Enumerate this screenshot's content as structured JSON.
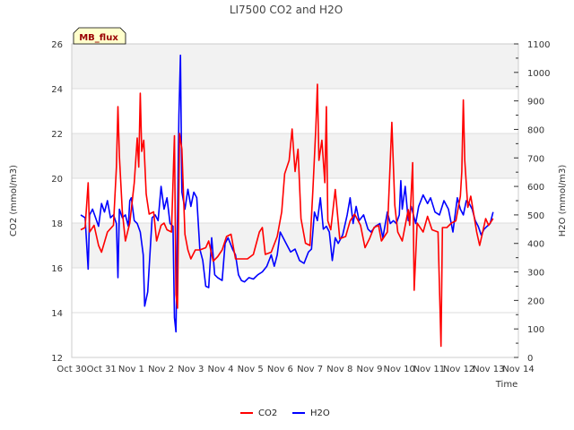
{
  "chart_data": {
    "type": "line",
    "title": "LI7500 CO2 and H2O",
    "badge": "MB_flux",
    "xlabel": "Time",
    "ylabel_left": "CO2 (mmol/m3)",
    "ylabel_right": "H2O (mmol/m3)",
    "x_range": [
      0,
      15
    ],
    "x_ticks": [
      {
        "x": 0,
        "label": "Oct 30"
      },
      {
        "x": 1,
        "label": "Oct 31"
      },
      {
        "x": 2,
        "label": "Nov 1"
      },
      {
        "x": 3,
        "label": "Nov 2"
      },
      {
        "x": 4,
        "label": "Nov 3"
      },
      {
        "x": 5,
        "label": "Nov 4"
      },
      {
        "x": 6,
        "label": "Nov 5"
      },
      {
        "x": 7,
        "label": "Nov 6"
      },
      {
        "x": 8,
        "label": "Nov 7"
      },
      {
        "x": 9,
        "label": "Nov 8"
      },
      {
        "x": 10,
        "label": "Nov 9"
      },
      {
        "x": 11,
        "label": "Nov 10"
      },
      {
        "x": 12,
        "label": "Nov 11"
      },
      {
        "x": 13,
        "label": "Nov 12"
      },
      {
        "x": 14,
        "label": "Nov 13"
      },
      {
        "x": 15,
        "label": "Nov 14"
      }
    ],
    "ylim_left": [
      12,
      26
    ],
    "yticks_left": [
      "12",
      "14",
      "16",
      "18",
      "20",
      "22",
      "24",
      "26"
    ],
    "ylim_right": [
      0,
      1100
    ],
    "yticks_right": [
      "0",
      "100",
      "200",
      "300",
      "400",
      "500",
      "600",
      "700",
      "800",
      "900",
      "1000",
      "1100"
    ],
    "bands_left": [
      [
        16,
        18
      ],
      [
        20,
        22
      ],
      [
        24,
        26
      ]
    ],
    "colors": {
      "co2": "#ff0000",
      "h2o": "#0000ff",
      "band": "#f2f2f2",
      "badge_bg": "#ffffcc",
      "badge_text": "#990000"
    },
    "legend": [
      {
        "name": "CO2",
        "color": "#ff0000"
      },
      {
        "name": "H2O",
        "color": "#0000ff"
      }
    ],
    "series": [
      {
        "name": "CO2",
        "axis": "left",
        "points": [
          [
            0.3,
            17.7
          ],
          [
            0.45,
            17.8
          ],
          [
            0.55,
            19.8
          ],
          [
            0.6,
            17.6
          ],
          [
            0.75,
            17.9
          ],
          [
            0.9,
            17.0
          ],
          [
            1.0,
            16.7
          ],
          [
            1.2,
            17.6
          ],
          [
            1.4,
            17.9
          ],
          [
            1.5,
            20.5
          ],
          [
            1.55,
            23.2
          ],
          [
            1.6,
            21.0
          ],
          [
            1.7,
            18.5
          ],
          [
            1.8,
            17.2
          ],
          [
            1.95,
            18.0
          ],
          [
            2.1,
            19.8
          ],
          [
            2.2,
            21.8
          ],
          [
            2.25,
            20.5
          ],
          [
            2.3,
            23.8
          ],
          [
            2.35,
            21.2
          ],
          [
            2.42,
            21.7
          ],
          [
            2.5,
            19.3
          ],
          [
            2.6,
            18.4
          ],
          [
            2.75,
            18.5
          ],
          [
            2.85,
            17.2
          ],
          [
            3.0,
            17.9
          ],
          [
            3.1,
            18.0
          ],
          [
            3.2,
            17.7
          ],
          [
            3.35,
            17.6
          ],
          [
            3.45,
            21.9
          ],
          [
            3.5,
            14.8
          ],
          [
            3.55,
            14.2
          ],
          [
            3.62,
            22.0
          ],
          [
            3.7,
            21.3
          ],
          [
            3.8,
            17.5
          ],
          [
            3.9,
            16.8
          ],
          [
            4.0,
            16.4
          ],
          [
            4.15,
            16.8
          ],
          [
            4.3,
            16.8
          ],
          [
            4.5,
            16.9
          ],
          [
            4.6,
            17.2
          ],
          [
            4.75,
            16.3
          ],
          [
            4.9,
            16.5
          ],
          [
            5.05,
            16.8
          ],
          [
            5.2,
            17.4
          ],
          [
            5.35,
            17.5
          ],
          [
            5.5,
            16.4
          ],
          [
            5.7,
            16.4
          ],
          [
            5.9,
            16.4
          ],
          [
            6.1,
            16.6
          ],
          [
            6.3,
            17.6
          ],
          [
            6.4,
            17.8
          ],
          [
            6.5,
            16.6
          ],
          [
            6.7,
            16.7
          ],
          [
            6.9,
            17.4
          ],
          [
            7.05,
            18.5
          ],
          [
            7.15,
            20.2
          ],
          [
            7.3,
            20.8
          ],
          [
            7.4,
            22.2
          ],
          [
            7.5,
            20.3
          ],
          [
            7.6,
            21.3
          ],
          [
            7.7,
            18.2
          ],
          [
            7.85,
            17.1
          ],
          [
            8.0,
            17.0
          ],
          [
            8.1,
            19.5
          ],
          [
            8.2,
            22.3
          ],
          [
            8.25,
            24.2
          ],
          [
            8.3,
            20.8
          ],
          [
            8.4,
            21.7
          ],
          [
            8.5,
            19.8
          ],
          [
            8.55,
            23.2
          ],
          [
            8.6,
            18.1
          ],
          [
            8.7,
            17.7
          ],
          [
            8.85,
            19.5
          ],
          [
            9.0,
            17.3
          ],
          [
            9.2,
            17.4
          ],
          [
            9.35,
            18.1
          ],
          [
            9.5,
            18.4
          ],
          [
            9.7,
            17.9
          ],
          [
            9.85,
            16.9
          ],
          [
            10.0,
            17.3
          ],
          [
            10.15,
            17.8
          ],
          [
            10.3,
            17.9
          ],
          [
            10.4,
            17.2
          ],
          [
            10.6,
            17.6
          ],
          [
            10.75,
            22.5
          ],
          [
            10.85,
            18.8
          ],
          [
            10.95,
            17.6
          ],
          [
            11.1,
            17.2
          ],
          [
            11.3,
            18.6
          ],
          [
            11.35,
            17.9
          ],
          [
            11.45,
            20.7
          ],
          [
            11.5,
            15.0
          ],
          [
            11.6,
            18.0
          ],
          [
            11.8,
            17.6
          ],
          [
            11.95,
            18.3
          ],
          [
            12.1,
            17.7
          ],
          [
            12.3,
            17.6
          ],
          [
            12.4,
            12.5
          ],
          [
            12.45,
            17.8
          ],
          [
            12.6,
            17.8
          ],
          [
            12.75,
            18.0
          ],
          [
            12.9,
            18.1
          ],
          [
            13.05,
            19.2
          ],
          [
            13.1,
            20.3
          ],
          [
            13.15,
            23.5
          ],
          [
            13.2,
            20.8
          ],
          [
            13.3,
            18.7
          ],
          [
            13.4,
            19.2
          ],
          [
            13.5,
            18.4
          ],
          [
            13.6,
            17.6
          ],
          [
            13.7,
            17.0
          ],
          [
            13.8,
            17.6
          ],
          [
            13.9,
            18.2
          ],
          [
            14.0,
            17.9
          ],
          [
            14.15,
            18.2
          ]
        ]
      },
      {
        "name": "H2O",
        "axis": "right",
        "points": [
          [
            0.3,
            500
          ],
          [
            0.45,
            490
          ],
          [
            0.55,
            310
          ],
          [
            0.6,
            500
          ],
          [
            0.7,
            520
          ],
          [
            0.8,
            490
          ],
          [
            0.9,
            460
          ],
          [
            1.0,
            540
          ],
          [
            1.1,
            510
          ],
          [
            1.2,
            550
          ],
          [
            1.3,
            490
          ],
          [
            1.4,
            500
          ],
          [
            1.5,
            470
          ],
          [
            1.55,
            280
          ],
          [
            1.6,
            520
          ],
          [
            1.7,
            490
          ],
          [
            1.8,
            500
          ],
          [
            1.9,
            460
          ],
          [
            1.95,
            550
          ],
          [
            2.0,
            560
          ],
          [
            2.1,
            480
          ],
          [
            2.2,
            470
          ],
          [
            2.3,
            440
          ],
          [
            2.4,
            360
          ],
          [
            2.45,
            180
          ],
          [
            2.55,
            230
          ],
          [
            2.7,
            490
          ],
          [
            2.8,
            500
          ],
          [
            2.9,
            480
          ],
          [
            3.0,
            600
          ],
          [
            3.1,
            520
          ],
          [
            3.2,
            560
          ],
          [
            3.3,
            470
          ],
          [
            3.4,
            460
          ],
          [
            3.45,
            140
          ],
          [
            3.5,
            90
          ],
          [
            3.6,
            850
          ],
          [
            3.65,
            1060
          ],
          [
            3.7,
            580
          ],
          [
            3.8,
            520
          ],
          [
            3.9,
            590
          ],
          [
            4.0,
            530
          ],
          [
            4.1,
            580
          ],
          [
            4.2,
            560
          ],
          [
            4.3,
            380
          ],
          [
            4.4,
            340
          ],
          [
            4.5,
            250
          ],
          [
            4.6,
            245
          ],
          [
            4.7,
            420
          ],
          [
            4.8,
            290
          ],
          [
            4.9,
            280
          ],
          [
            5.05,
            270
          ],
          [
            5.15,
            400
          ],
          [
            5.25,
            420
          ],
          [
            5.4,
            380
          ],
          [
            5.5,
            360
          ],
          [
            5.6,
            290
          ],
          [
            5.7,
            270
          ],
          [
            5.8,
            265
          ],
          [
            5.95,
            280
          ],
          [
            6.1,
            275
          ],
          [
            6.25,
            290
          ],
          [
            6.4,
            300
          ],
          [
            6.55,
            320
          ],
          [
            6.7,
            360
          ],
          [
            6.8,
            320
          ],
          [
            6.9,
            360
          ],
          [
            7.0,
            440
          ],
          [
            7.1,
            420
          ],
          [
            7.2,
            400
          ],
          [
            7.35,
            370
          ],
          [
            7.5,
            380
          ],
          [
            7.65,
            340
          ],
          [
            7.8,
            330
          ],
          [
            7.95,
            370
          ],
          [
            8.05,
            380
          ],
          [
            8.15,
            510
          ],
          [
            8.25,
            480
          ],
          [
            8.35,
            560
          ],
          [
            8.45,
            450
          ],
          [
            8.55,
            460
          ],
          [
            8.65,
            440
          ],
          [
            8.75,
            340
          ],
          [
            8.85,
            420
          ],
          [
            8.95,
            400
          ],
          [
            9.1,
            430
          ],
          [
            9.25,
            500
          ],
          [
            9.35,
            560
          ],
          [
            9.45,
            470
          ],
          [
            9.55,
            530
          ],
          [
            9.65,
            480
          ],
          [
            9.8,
            500
          ],
          [
            9.95,
            450
          ],
          [
            10.05,
            440
          ],
          [
            10.2,
            460
          ],
          [
            10.35,
            470
          ],
          [
            10.45,
            420
          ],
          [
            10.6,
            510
          ],
          [
            10.7,
            470
          ],
          [
            10.8,
            480
          ],
          [
            10.9,
            470
          ],
          [
            11.0,
            500
          ],
          [
            11.05,
            620
          ],
          [
            11.1,
            520
          ],
          [
            11.2,
            600
          ],
          [
            11.3,
            480
          ],
          [
            11.4,
            530
          ],
          [
            11.55,
            470
          ],
          [
            11.65,
            530
          ],
          [
            11.8,
            570
          ],
          [
            11.95,
            540
          ],
          [
            12.05,
            560
          ],
          [
            12.2,
            510
          ],
          [
            12.35,
            500
          ],
          [
            12.5,
            550
          ],
          [
            12.65,
            520
          ],
          [
            12.8,
            440
          ],
          [
            12.95,
            560
          ],
          [
            13.05,
            520
          ],
          [
            13.15,
            500
          ],
          [
            13.25,
            550
          ],
          [
            13.35,
            540
          ],
          [
            13.45,
            520
          ],
          [
            13.55,
            480
          ],
          [
            13.65,
            460
          ],
          [
            13.75,
            430
          ],
          [
            13.85,
            450
          ],
          [
            13.95,
            460
          ],
          [
            14.05,
            470
          ],
          [
            14.15,
            510
          ]
        ]
      }
    ]
  }
}
